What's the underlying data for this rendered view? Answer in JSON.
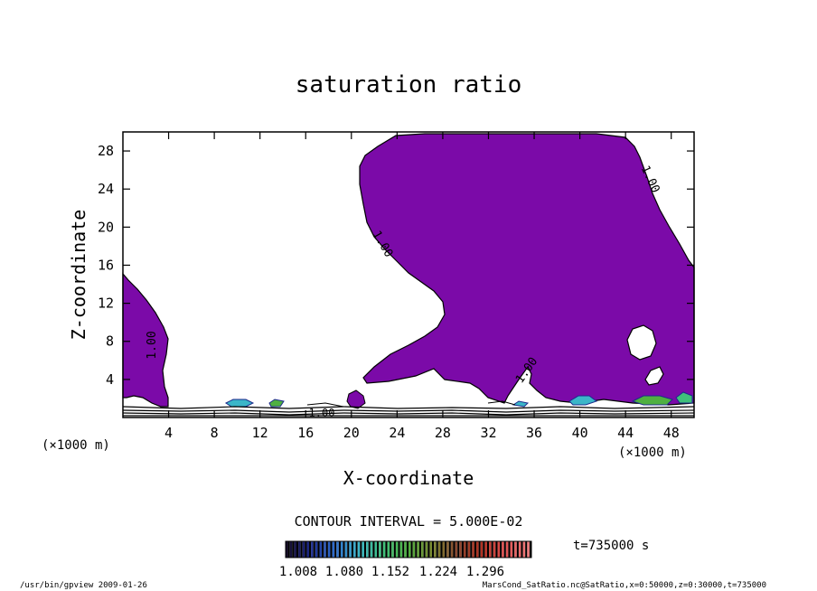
{
  "chart_data": {
    "type": "contour",
    "title": "saturation ratio",
    "xlabel": "X-coordinate",
    "ylabel": "Z-coordinate",
    "x_unit": "(×1000 m)",
    "z_unit": "(×1000 m)",
    "xlim": [
      0,
      50
    ],
    "ylim": [
      0,
      30
    ],
    "x_ticks": [
      4,
      8,
      12,
      16,
      20,
      24,
      28,
      32,
      36,
      40,
      44,
      48
    ],
    "y_ticks": [
      4,
      8,
      12,
      16,
      20,
      24,
      28
    ],
    "contour_labels": [
      "1.00",
      "1.00",
      "1.00",
      "1.00",
      "1.00"
    ],
    "contour_interval_text": "CONTOUR INTERVAL = 5.000E-02",
    "time_text": "t=735000 s",
    "colorbar": {
      "tick_labels": [
        "1.008",
        "1.080",
        "1.152",
        "1.224",
        "1.296"
      ],
      "min": 1.008,
      "max": 1.296,
      "colors": [
        "#140a28",
        "#1c2a8c",
        "#2f6fd0",
        "#3bb6c8",
        "#3fc07a",
        "#4fb040",
        "#7a8a30",
        "#8a4a30",
        "#b03020",
        "#e05050",
        "#f07a7a"
      ]
    },
    "fill_color": "#7b0aa8"
  },
  "footer": {
    "left": "/usr/bin/gpview  2009-01-26",
    "right": "MarsCond_SatRatio.nc@SatRatio,x=0:50000,z=0:30000,t=735000"
  }
}
